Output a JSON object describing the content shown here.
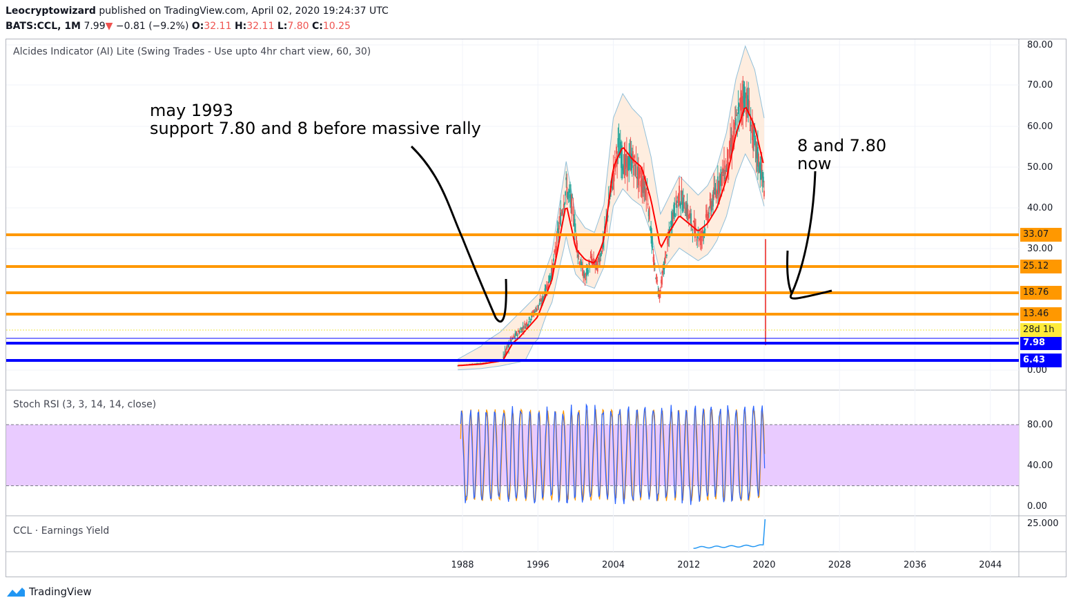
{
  "header": {
    "author": "Leocryptowizard",
    "published": "published on TradingView.com, April 02, 2020 19:24:37 UTC",
    "symbol": "BATS:CCL, 1M",
    "last": "7.99",
    "change": "−0.81 (−9.2%)",
    "o_label": "O:",
    "o_val": "32.11",
    "h_label": "H:",
    "h_val": "32.11",
    "l_label": "L:",
    "l_val": "7.80",
    "c_label": "C:",
    "c_val": "10.25"
  },
  "panes": {
    "main_label": "Alcides Indicator (AI) Lite (Swing Trades - Use upto 4hr chart view, 60, 30)",
    "stoch_label": "Stoch RSI (3, 3, 14, 14, close)",
    "ey_label": "CCL · Earnings Yield"
  },
  "annotations": {
    "left_line1": "may 1993",
    "left_line2": "support 7.80 and 8 before massive rally",
    "right_line1": "8 and 7.80",
    "right_line2": "now"
  },
  "footer": {
    "brand": "TradingView"
  },
  "colors": {
    "up": "#26a69a",
    "down": "#ef5350",
    "ma": "#ff0000",
    "band_fill": "#fde6d2",
    "band_line": "#90bfd9",
    "support": "#ff9800",
    "blue": "#0000ff",
    "stoch_k": "#2962ff",
    "stoch_d": "#ff9800",
    "stoch_zone": "#e9cbff",
    "ey": "#2196f3"
  },
  "chart_data": [
    {
      "type": "candlestick",
      "x_ticks": [
        "1988",
        "1996",
        "2004",
        "2012",
        "2020",
        "2028",
        "2036",
        "2044"
      ],
      "y_ticks": [
        "80.00",
        "70.00",
        "60.00",
        "50.00",
        "40.00",
        "30.00",
        "0.00"
      ],
      "ylim": [
        0,
        82
      ],
      "horizontal_levels": [
        {
          "label": "33.07",
          "value": 33.07,
          "color": "#ff9800"
        },
        {
          "label": "25.12",
          "value": 25.12,
          "color": "#ff9800"
        },
        {
          "label": "18.76",
          "value": 18.76,
          "color": "#ff9800"
        },
        {
          "label": "13.46",
          "value": 13.46,
          "color": "#ff9800"
        },
        {
          "label": "7.98",
          "value": 7.98,
          "color": "#0000ff"
        },
        {
          "label": "6.43",
          "value": 6.43,
          "color": "#0000ff"
        }
      ],
      "countdown_label": "28d 1h",
      "price_series": {
        "x": [
          1987.5,
          1989,
          1990.5,
          1992,
          1993.4,
          1995,
          1996.5,
          1997.5,
          1998.3,
          1999,
          1999.7,
          2000.3,
          2001,
          2001.6,
          2002.3,
          2003,
          2003.8,
          2004.5,
          2005.3,
          2006,
          2006.8,
          2007.6,
          2008.3,
          2008.9,
          2009.5,
          2010.3,
          2011,
          2011.7,
          2012.5,
          2013.3,
          2014,
          2015,
          2016,
          2017,
          2017.8,
          2018.3,
          2019,
          2019.6,
          2020.1,
          2020.2
        ],
        "y": [
          3,
          4,
          5,
          6,
          9,
          12,
          17,
          24,
          36,
          45,
          40,
          28,
          22,
          27,
          25,
          32,
          45,
          55,
          50,
          52,
          47,
          44,
          26,
          18,
          27,
          38,
          43,
          40,
          35,
          32,
          38,
          45,
          50,
          60,
          68,
          65,
          55,
          50,
          44,
          8
        ]
      },
      "moving_average": {
        "x": [
          1987.5,
          1990,
          1992,
          1994,
          1996,
          1997.5,
          1999,
          2000,
          2001,
          2002,
          2003,
          2004,
          2005,
          2006,
          2007,
          2008,
          2009,
          2010,
          2011,
          2012,
          2013,
          2014,
          2015,
          2016,
          2017,
          2018,
          2019,
          2020
        ],
        "y": [
          3,
          4,
          6,
          9,
          13,
          22,
          41,
          30,
          27,
          26,
          32,
          50,
          55,
          52,
          50,
          42,
          30,
          34,
          38,
          36,
          34,
          36,
          40,
          47,
          58,
          65,
          60,
          50
        ]
      }
    },
    {
      "type": "line",
      "title": "Stoch RSI (3, 3, 14, 14, close)",
      "y_ticks": [
        "80.00",
        "40.00",
        "0.00"
      ],
      "ylim": [
        0,
        100
      ],
      "bands": [
        20,
        80
      ]
    },
    {
      "type": "line",
      "title": "CCL · Earnings Yield",
      "y_ticks": [
        "25.000"
      ]
    }
  ]
}
